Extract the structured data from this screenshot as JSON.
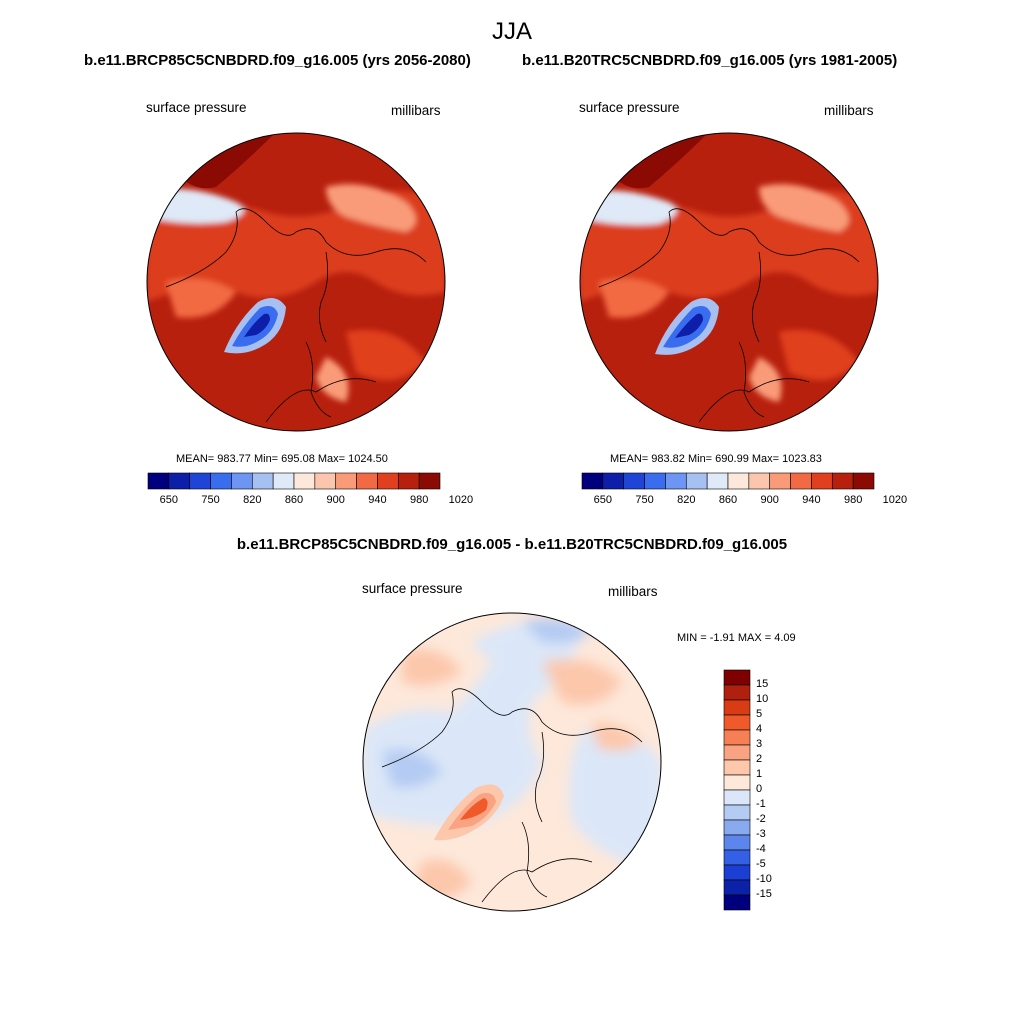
{
  "figure": {
    "season_title": "JJA",
    "left_run_title": "b.e11.BRCP85C5CNBDRD.f09_g16.005 (yrs 2056-2080)",
    "right_run_title": "b.e11.B20TRC5CNBDRD.f09_g16.005 (yrs 1981-2005)",
    "diff_title": "b.e11.BRCP85C5CNBDRD.f09_g16.005 - b.e11.B20TRC5CNBDRD.f09_g16.005"
  },
  "panels": {
    "left": {
      "variable": "surface pressure",
      "units": "millibars",
      "stats_text": "MEAN= 983.77  Min= 695.08  Max= 1024.50",
      "mean": 983.77,
      "min": 695.08,
      "max": 1024.5
    },
    "right": {
      "variable": "surface pressure",
      "units": "millibars",
      "stats_text": "MEAN= 983.82  Min= 690.99  Max= 1023.83",
      "mean": 983.82,
      "min": 690.99,
      "max": 1023.83
    },
    "diff": {
      "variable": "surface pressure",
      "units": "millibars",
      "minmax_text": "MIN =  -1.91 MAX =   4.09",
      "min": -1.91,
      "max": 4.09
    }
  },
  "colorbars": {
    "absolute": {
      "colors": [
        "#00007f",
        "#0d1ea8",
        "#1f45d6",
        "#3a6cf0",
        "#6d95f3",
        "#a7c0f2",
        "#dfe9f7",
        "#fde9dc",
        "#fcc6ae",
        "#f99b78",
        "#f26a43",
        "#e0401d",
        "#b8200e",
        "#8b0a04"
      ],
      "tick_labels": [
        "650",
        "750",
        "820",
        "860",
        "900",
        "940",
        "980",
        "1020"
      ]
    },
    "difference": {
      "colors": [
        "#7f0000",
        "#b0200e",
        "#d83c14",
        "#f05a2a",
        "#f67f55",
        "#f9a382",
        "#fcc7ab",
        "#fde8da",
        "#dbe7f8",
        "#b4cbf3",
        "#8aaaf0",
        "#5d86ec",
        "#3460e6",
        "#1a3fd2",
        "#0b22a8",
        "#00007f"
      ],
      "tick_labels": [
        "15",
        "10",
        "5",
        "4",
        "3",
        "2",
        "1",
        "0",
        "-1",
        "-2",
        "-3",
        "-4",
        "-5",
        "-10",
        "-15"
      ]
    }
  }
}
